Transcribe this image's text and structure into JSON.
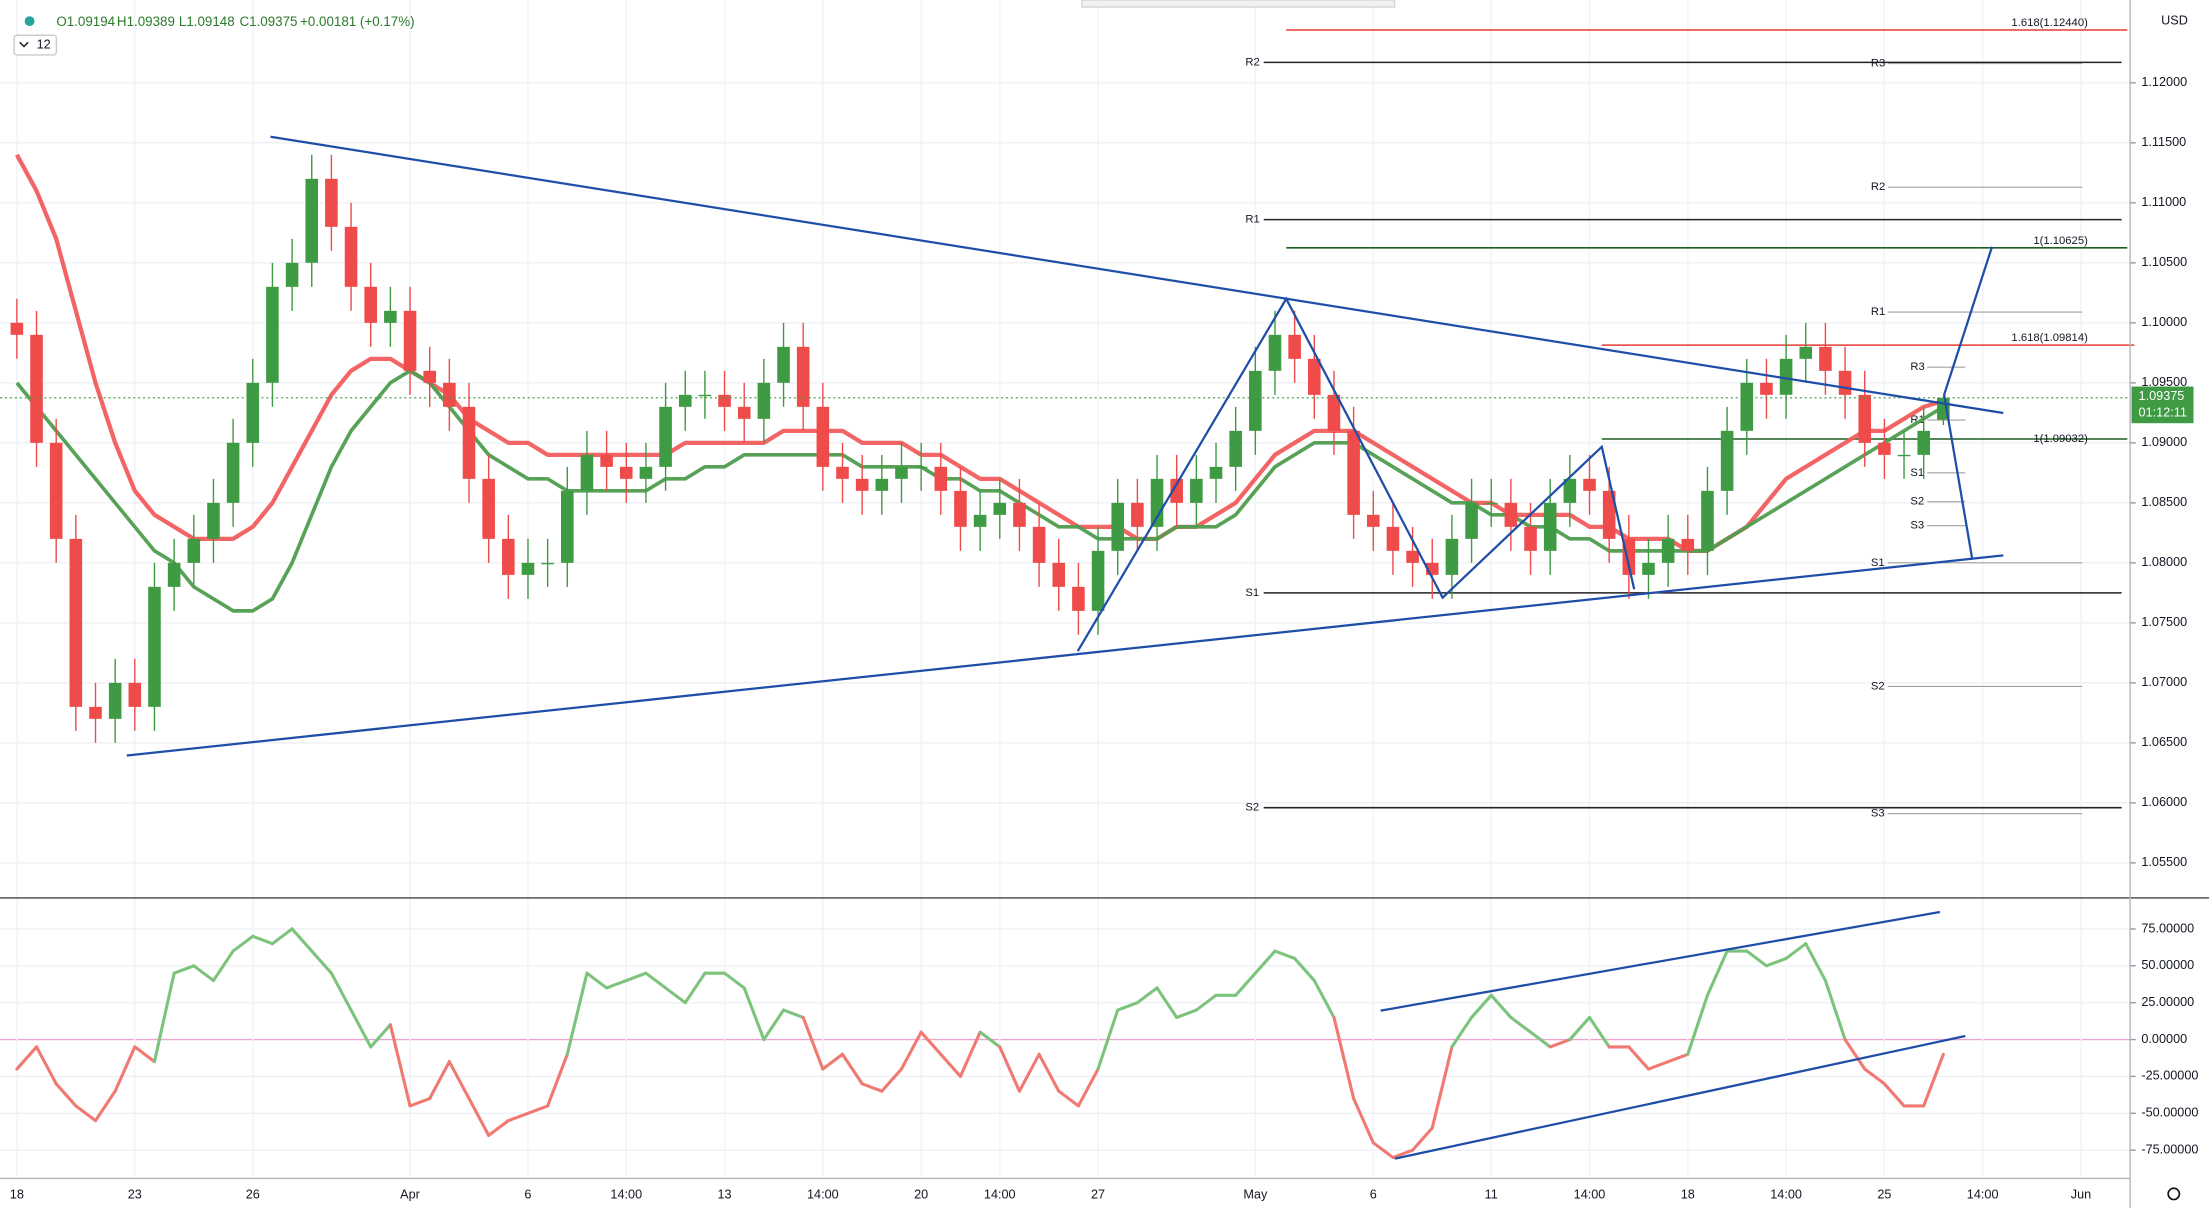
{
  "header": {
    "items": [
      "O1.09194",
      "H1.09389",
      "L1.09148",
      "C1.09375",
      "+0.00181 (+0.17%)"
    ],
    "badge": "12"
  },
  "chart_data": {
    "type": "candlestick",
    "currency": "USD",
    "categories": [
      "18",
      null,
      null,
      null,
      null,
      null,
      "23",
      null,
      null,
      null,
      null,
      null,
      "26",
      null,
      null,
      null,
      null,
      null,
      null,
      null,
      "Apr",
      null,
      null,
      null,
      null,
      null,
      "6",
      null,
      null,
      null,
      null,
      "14:00",
      null,
      null,
      null,
      null,
      "13",
      null,
      null,
      null,
      null,
      "14:00",
      null,
      null,
      null,
      null,
      "20",
      null,
      null,
      null,
      "14:00",
      null,
      null,
      null,
      null,
      "27",
      null,
      null,
      null,
      null,
      null,
      null,
      null,
      "May",
      null,
      null,
      null,
      null,
      null,
      "6",
      null,
      null,
      null,
      null,
      null,
      "11",
      null,
      null,
      null,
      null,
      "14:00",
      null,
      null,
      null,
      null,
      "18",
      null,
      null,
      null,
      null,
      "14:00",
      null,
      null,
      null,
      null,
      "25",
      null,
      null,
      null,
      null,
      "14:00",
      null,
      null,
      null,
      null,
      "Jun",
      null,
      null
    ],
    "open": [
      1.1,
      1.099,
      1.09,
      1.082,
      1.068,
      1.067,
      1.07,
      1.068,
      1.078,
      1.08,
      1.082,
      1.085,
      1.09,
      1.095,
      1.103,
      1.105,
      1.112,
      1.108,
      1.103,
      1.1,
      1.101,
      1.096,
      1.095,
      1.093,
      1.087,
      1.082,
      1.079,
      1.08,
      1.08,
      1.086,
      1.089,
      1.088,
      1.087,
      1.088,
      1.093,
      1.094,
      1.094,
      1.093,
      1.092,
      1.095,
      1.098,
      1.093,
      1.088,
      1.087,
      1.086,
      1.087,
      1.088,
      1.088,
      1.086,
      1.083,
      1.084,
      1.085,
      1.083,
      1.08,
      1.078,
      1.076,
      1.081,
      1.085,
      1.083,
      1.087,
      1.085,
      1.087,
      1.088,
      1.091,
      1.096,
      1.099,
      1.097,
      1.094,
      1.091,
      1.084,
      1.083,
      1.081,
      1.08,
      1.079,
      1.082,
      1.085,
      1.085,
      1.083,
      1.081,
      1.085,
      1.087,
      1.086,
      1.082,
      1.079,
      1.08,
      1.082,
      1.081,
      1.086,
      1.091,
      1.095,
      1.094,
      1.097,
      1.098,
      1.096,
      1.094,
      1.09,
      1.089,
      1.089,
      1.09194,
      null,
      null,
      null,
      null,
      null,
      null,
      null,
      null,
      null
    ],
    "high": [
      1.102,
      1.101,
      1.092,
      1.084,
      1.07,
      1.072,
      1.072,
      1.08,
      1.082,
      1.084,
      1.087,
      1.092,
      1.097,
      1.105,
      1.107,
      1.114,
      1.114,
      1.11,
      1.105,
      1.103,
      1.103,
      1.098,
      1.097,
      1.095,
      1.089,
      1.084,
      1.082,
      1.082,
      1.088,
      1.091,
      1.091,
      1.09,
      1.09,
      1.095,
      1.096,
      1.096,
      1.096,
      1.095,
      1.097,
      1.1,
      1.1,
      1.095,
      1.09,
      1.089,
      1.089,
      1.09,
      1.09,
      1.09,
      1.088,
      1.086,
      1.087,
      1.087,
      1.085,
      1.082,
      1.08,
      1.083,
      1.087,
      1.087,
      1.089,
      1.089,
      1.089,
      1.09,
      1.093,
      1.098,
      1.101,
      1.101,
      1.099,
      1.096,
      1.093,
      1.086,
      1.085,
      1.083,
      1.082,
      1.084,
      1.087,
      1.087,
      1.087,
      1.085,
      1.087,
      1.089,
      1.089,
      1.088,
      1.084,
      1.082,
      1.084,
      1.084,
      1.088,
      1.093,
      1.097,
      1.097,
      1.099,
      1.1,
      1.1,
      1.098,
      1.096,
      1.092,
      1.091,
      1.093,
      1.09389,
      null,
      null,
      null,
      null,
      null,
      null,
      null,
      null,
      null
    ],
    "low": [
      1.097,
      1.088,
      1.08,
      1.066,
      1.065,
      1.065,
      1.066,
      1.066,
      1.076,
      1.078,
      1.08,
      1.083,
      1.088,
      1.093,
      1.101,
      1.103,
      1.106,
      1.101,
      1.098,
      1.098,
      1.094,
      1.093,
      1.091,
      1.085,
      1.08,
      1.077,
      1.077,
      1.078,
      1.078,
      1.084,
      1.086,
      1.085,
      1.085,
      1.086,
      1.091,
      1.092,
      1.091,
      1.09,
      1.09,
      1.093,
      1.091,
      1.086,
      1.085,
      1.084,
      1.084,
      1.085,
      1.086,
      1.084,
      1.081,
      1.081,
      1.082,
      1.081,
      1.078,
      1.076,
      1.074,
      1.074,
      1.079,
      1.081,
      1.081,
      1.083,
      1.083,
      1.085,
      1.086,
      1.089,
      1.094,
      1.095,
      1.092,
      1.089,
      1.082,
      1.081,
      1.079,
      1.078,
      1.077,
      1.077,
      1.08,
      1.083,
      1.081,
      1.079,
      1.079,
      1.083,
      1.084,
      1.08,
      1.077,
      1.077,
      1.078,
      1.079,
      1.079,
      1.084,
      1.089,
      1.092,
      1.092,
      1.095,
      1.094,
      1.092,
      1.088,
      1.087,
      1.087,
      1.087,
      1.09148,
      null,
      null,
      null,
      null,
      null,
      null,
      null,
      null,
      null
    ],
    "close": [
      1.099,
      1.09,
      1.082,
      1.068,
      1.067,
      1.07,
      1.068,
      1.078,
      1.08,
      1.082,
      1.085,
      1.09,
      1.095,
      1.103,
      1.105,
      1.112,
      1.108,
      1.103,
      1.1,
      1.101,
      1.096,
      1.095,
      1.093,
      1.087,
      1.082,
      1.079,
      1.08,
      1.08,
      1.086,
      1.089,
      1.088,
      1.087,
      1.088,
      1.093,
      1.094,
      1.094,
      1.093,
      1.092,
      1.095,
      1.098,
      1.093,
      1.088,
      1.087,
      1.086,
      1.087,
      1.088,
      1.088,
      1.086,
      1.083,
      1.084,
      1.085,
      1.083,
      1.08,
      1.078,
      1.076,
      1.081,
      1.085,
      1.083,
      1.087,
      1.085,
      1.087,
      1.088,
      1.091,
      1.096,
      1.099,
      1.097,
      1.094,
      1.091,
      1.084,
      1.083,
      1.081,
      1.08,
      1.079,
      1.082,
      1.085,
      1.085,
      1.083,
      1.081,
      1.085,
      1.087,
      1.086,
      1.082,
      1.079,
      1.08,
      1.082,
      1.081,
      1.086,
      1.091,
      1.095,
      1.094,
      1.097,
      1.098,
      1.096,
      1.094,
      1.09,
      1.089,
      1.089,
      1.091,
      1.09375,
      null,
      null,
      null,
      null,
      null,
      null,
      null,
      null,
      null
    ],
    "up_color": "#3f9b43",
    "down_color": "#ef4b4b",
    "series": [
      {
        "color": "#f25c5c",
        "values": [
          1.114,
          1.111,
          1.107,
          1.101,
          1.095,
          1.09,
          1.086,
          1.084,
          1.083,
          1.082,
          1.082,
          1.082,
          1.083,
          1.085,
          1.088,
          1.091,
          1.094,
          1.096,
          1.097,
          1.097,
          1.096,
          1.095,
          1.094,
          1.092,
          1.091,
          1.09,
          1.09,
          1.089,
          1.089,
          1.089,
          1.089,
          1.089,
          1.089,
          1.089,
          1.09,
          1.09,
          1.09,
          1.09,
          1.09,
          1.091,
          1.091,
          1.091,
          1.091,
          1.09,
          1.09,
          1.09,
          1.089,
          1.089,
          1.088,
          1.087,
          1.087,
          1.086,
          1.085,
          1.084,
          1.083,
          1.083,
          1.083,
          1.082,
          1.082,
          1.083,
          1.083,
          1.084,
          1.085,
          1.087,
          1.089,
          1.09,
          1.091,
          1.091,
          1.091,
          1.09,
          1.089,
          1.088,
          1.087,
          1.086,
          1.085,
          1.085,
          1.084,
          1.084,
          1.084,
          1.084,
          1.083,
          1.083,
          1.082,
          1.082,
          1.082,
          1.081,
          1.081,
          1.082,
          1.083,
          1.085,
          1.087,
          1.088,
          1.089,
          1.09,
          1.091,
          1.091,
          1.092,
          1.093,
          1.0935,
          null,
          null,
          null,
          null,
          null,
          null,
          null,
          null,
          null
        ]
      },
      {
        "color": "#4f9d4f",
        "values": [
          1.095,
          1.093,
          1.091,
          1.089,
          1.087,
          1.085,
          1.083,
          1.081,
          1.08,
          1.078,
          1.077,
          1.076,
          1.076,
          1.077,
          1.08,
          1.084,
          1.088,
          1.091,
          1.093,
          1.095,
          1.096,
          1.095,
          1.093,
          1.091,
          1.089,
          1.088,
          1.087,
          1.087,
          1.086,
          1.086,
          1.086,
          1.086,
          1.086,
          1.087,
          1.087,
          1.088,
          1.088,
          1.089,
          1.089,
          1.089,
          1.089,
          1.089,
          1.089,
          1.088,
          1.088,
          1.088,
          1.088,
          1.087,
          1.087,
          1.086,
          1.086,
          1.085,
          1.084,
          1.083,
          1.083,
          1.082,
          1.082,
          1.082,
          1.082,
          1.083,
          1.083,
          1.083,
          1.084,
          1.086,
          1.088,
          1.089,
          1.09,
          1.09,
          1.09,
          1.089,
          1.088,
          1.087,
          1.086,
          1.085,
          1.085,
          1.084,
          1.084,
          1.083,
          1.083,
          1.082,
          1.082,
          1.081,
          1.081,
          1.081,
          1.081,
          1.081,
          1.081,
          1.082,
          1.083,
          1.084,
          1.085,
          1.086,
          1.087,
          1.088,
          1.089,
          1.09,
          1.091,
          1.092,
          1.093,
          null,
          null,
          null,
          null,
          null,
          null,
          null,
          null,
          null
        ]
      },
      {
        "axis": "y2",
        "up_color": "#7cc47c",
        "down_color": "#f07a72",
        "values": [
          -20,
          -5,
          -30,
          -45,
          -55,
          -35,
          -5,
          -15,
          45,
          50,
          40,
          60,
          70,
          65,
          75,
          60,
          45,
          20,
          -5,
          10,
          -45,
          -40,
          -15,
          -40,
          -65,
          -55,
          -50,
          -45,
          -10,
          45,
          35,
          40,
          45,
          35,
          25,
          45,
          45,
          35,
          0,
          20,
          15,
          -20,
          -10,
          -30,
          -35,
          -20,
          5,
          -10,
          -25,
          5,
          -5,
          -35,
          -10,
          -35,
          -45,
          -20,
          20,
          25,
          35,
          15,
          20,
          30,
          30,
          45,
          60,
          55,
          40,
          15,
          -40,
          -70,
          -80,
          -75,
          -60,
          -5,
          15,
          30,
          15,
          5,
          -5,
          0,
          15,
          -5,
          -5,
          -20,
          -15,
          -10,
          30,
          60,
          60,
          50,
          55,
          65,
          40,
          0,
          -20,
          -30,
          -45,
          -45,
          -10,
          null,
          null,
          null,
          null,
          null,
          null,
          null,
          null,
          null
        ]
      }
    ],
    "ylim": [
      1.0522,
      1.1269
    ],
    "yticks": [
      {
        "value": 1.12,
        "label": "1.12000"
      },
      {
        "value": 1.115,
        "label": "1.11500"
      },
      {
        "value": 1.11,
        "label": "1.11000"
      },
      {
        "value": 1.105,
        "label": "1.10500"
      },
      {
        "value": 1.1,
        "label": "1.10000"
      },
      {
        "value": 1.095,
        "label": "1.09500"
      },
      {
        "value": 1.09,
        "label": "1.09000"
      },
      {
        "value": 1.085,
        "label": "1.08500"
      },
      {
        "value": 1.08,
        "label": "1.08000"
      },
      {
        "value": 1.075,
        "label": "1.07500"
      },
      {
        "value": 1.07,
        "label": "1.07000"
      },
      {
        "value": 1.065,
        "label": "1.06500"
      },
      {
        "value": 1.06,
        "label": "1.06000"
      },
      {
        "value": 1.055,
        "label": "1.05500"
      }
    ],
    "y2lim": [
      -93.2,
      95.1
    ],
    "y2ticks": [
      {
        "value": 75,
        "label": "75.00000"
      },
      {
        "value": 50,
        "label": "50.00000"
      },
      {
        "value": 25,
        "label": "25.00000"
      },
      {
        "value": 0,
        "label": "0.00000"
      },
      {
        "value": -25,
        "label": "-25.00000"
      },
      {
        "value": -50,
        "label": "-50.00000"
      },
      {
        "value": -75,
        "label": "-75.00000"
      }
    ],
    "zero_line_color": "#e9a3cf",
    "grid": true,
    "last_price": {
      "value": 1.09375,
      "label": "1.09375",
      "color": "#3f9b43"
    },
    "countdown": "01:12:11",
    "levels": [
      {
        "label": "1.618(1.12440)",
        "value": 1.1244,
        "color": "#e53935"
      },
      {
        "label": "R2",
        "value": 1.1217,
        "color": "#222222"
      },
      {
        "label": "R1",
        "value": 1.1086,
        "color": "#222222"
      },
      {
        "label": "1(1.10625)",
        "value": 1.10625,
        "color": "#1b5e20"
      },
      {
        "label": "1.618(1.09814)",
        "value": 1.09814,
        "color": "#e53935"
      },
      {
        "label": "1(1.09032)",
        "value": 1.09032,
        "color": "#1b5e20"
      },
      {
        "label": "S1",
        "value": 1.0775,
        "color": "#222222"
      },
      {
        "label": "S2",
        "value": 1.0596,
        "color": "#222222"
      },
      {
        "label": "R3",
        "value": 1.1216,
        "color": "#a0a0a0"
      },
      {
        "label": "R2",
        "value": 1.1113,
        "color": "#a0a0a0"
      },
      {
        "label": "R1",
        "value": 1.1009,
        "color": "#a0a0a0"
      },
      {
        "label": "S1",
        "value": 1.08,
        "color": "#a0a0a0"
      },
      {
        "label": "S2",
        "value": 1.0697,
        "color": "#a0a0a0"
      },
      {
        "label": "S3",
        "value": 1.0591,
        "color": "#a0a0a0"
      },
      {
        "label": "R3",
        "value": 1.0963,
        "color": "#a0a0a0"
      },
      {
        "label": "R1",
        "value": 1.0919,
        "color": "#a0a0a0"
      },
      {
        "label": "S1",
        "value": 1.0875,
        "color": "#a0a0a0"
      },
      {
        "label": "S2",
        "value": 1.0851,
        "color": "#a0a0a0"
      },
      {
        "label": "S3",
        "value": 1.0831,
        "color": "#a0a0a0"
      }
    ]
  }
}
